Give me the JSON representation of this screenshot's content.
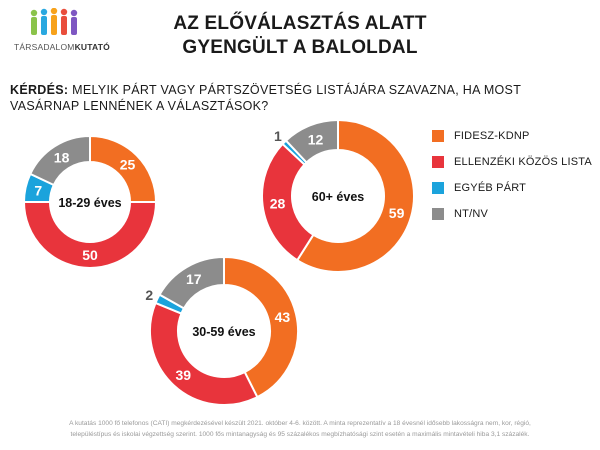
{
  "logo": {
    "text_part1": "TÁRSADALOM",
    "text_part2": "KUTATÓ"
  },
  "title": "AZ ELŐVÁLASZTÁS ALATT GYENGÜLT A BALOLDAL",
  "question": {
    "label": "KÉRDÉS:",
    "text": " MELYIK PÁRT VAGY PÁRTSZÖVETSÉG LISTÁJÁRA SZAVAZNA, HA MOST VASÁRNAP LENNÉNEK A VÁLASZTÁSOK?"
  },
  "legend": [
    {
      "label": "FIDESZ-KDNP",
      "color": "#f26e22"
    },
    {
      "label": "ELLENZÉKI KÖZÖS LISTA",
      "color": "#e8343c"
    },
    {
      "label": "EGYÉB PÁRT",
      "color": "#1ba3dc"
    },
    {
      "label": "NT/NV",
      "color": "#8c8c8c"
    }
  ],
  "chart_data": [
    {
      "type": "donut",
      "center_label": "18-29 éves",
      "categories": [
        "FIDESZ-KDNP",
        "ELLENZÉKI KÖZÖS LISTA",
        "EGYÉB PÁRT",
        "NT/NV"
      ],
      "values": [
        25,
        50,
        7,
        18
      ],
      "colors": [
        "#f26e22",
        "#e8343c",
        "#1ba3dc",
        "#8c8c8c"
      ]
    },
    {
      "type": "donut",
      "center_label": "60+ éves",
      "categories": [
        "FIDESZ-KDNP",
        "ELLENZÉKI KÖZÖS LISTA",
        "EGYÉB PÁRT",
        "NT/NV"
      ],
      "values": [
        59,
        28,
        1,
        12
      ],
      "colors": [
        "#f26e22",
        "#e8343c",
        "#1ba3dc",
        "#8c8c8c"
      ]
    },
    {
      "type": "donut",
      "center_label": "30-59 éves",
      "categories": [
        "FIDESZ-KDNP",
        "ELLENZÉKI KÖZÖS LISTA",
        "EGYÉB PÁRT",
        "NT/NV"
      ],
      "values": [
        43,
        39,
        2,
        17
      ],
      "colors": [
        "#f26e22",
        "#e8343c",
        "#1ba3dc",
        "#8c8c8c"
      ]
    }
  ],
  "footnote": {
    "line1": "A kutatás 1000 fő telefonos (CATI) megkérdezésével készült 2021. október 4-6. között. A minta reprezentatív a 18 évesnél idősebb lakosságra nem, kor, régió,",
    "line2": "településtípus és iskolai végzettség szerint. 1000 fős mintanagyság és 95 százalékos megbízhatósági szint esetén a maximális mintavételi hiba 3,1 százalék."
  }
}
